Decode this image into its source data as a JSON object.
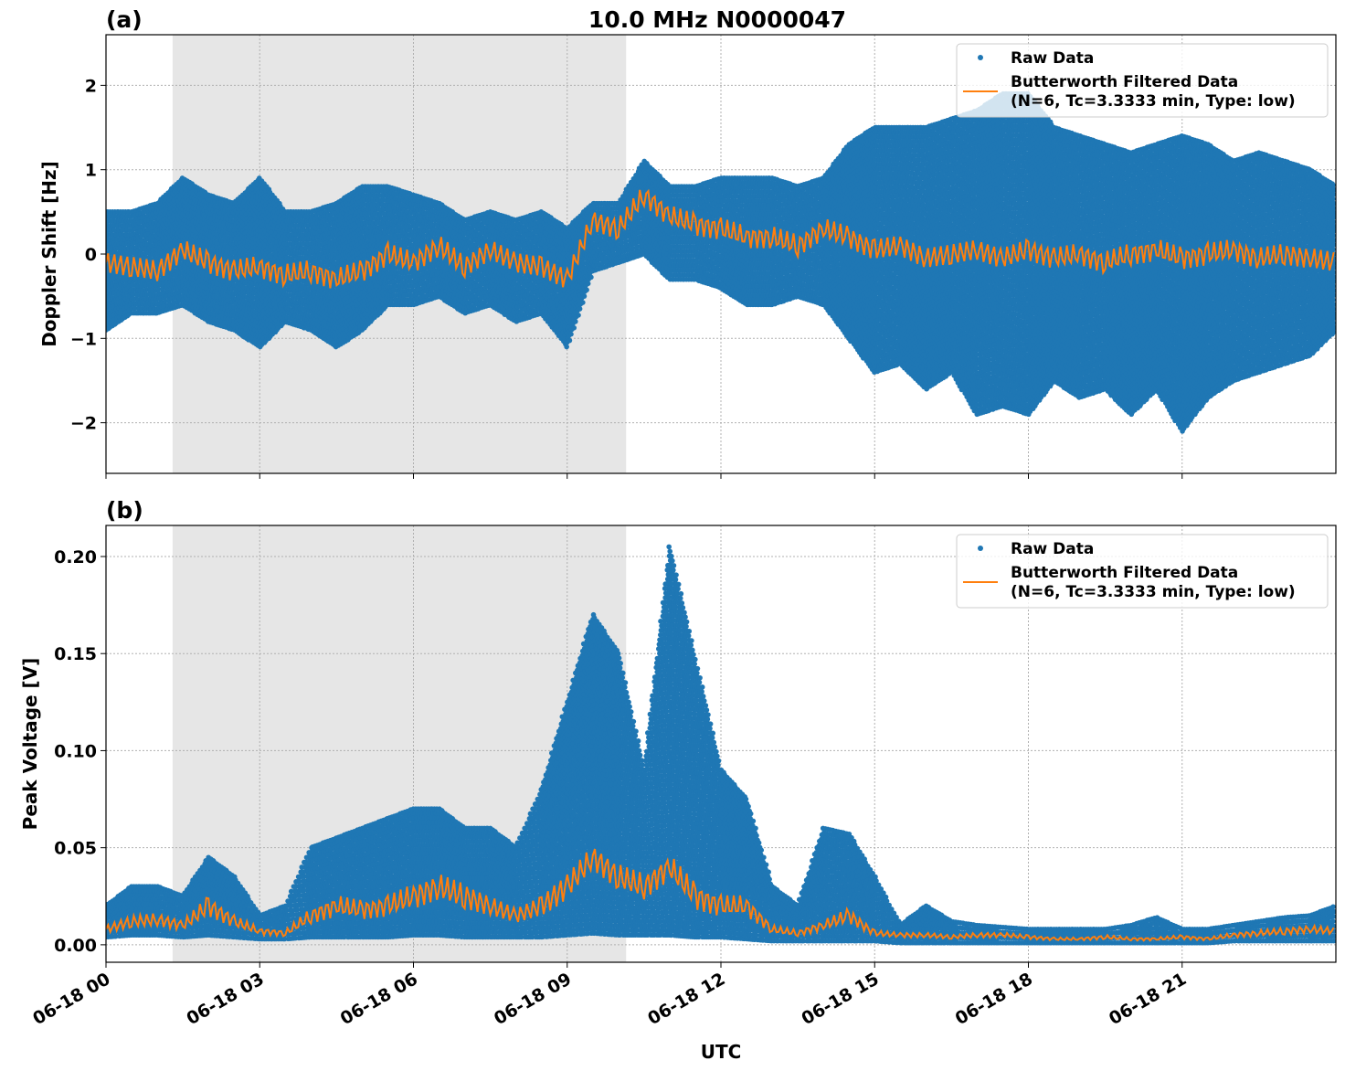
{
  "chart_data": [
    {
      "type": "scatter",
      "panel_label": "(a)",
      "title": "10.0 MHz N0000047",
      "xlabel": "",
      "ylabel": "Doppler Shift [Hz]",
      "xlim_hours_utc": [
        0,
        24
      ],
      "ylim": [
        -2.6,
        2.6
      ],
      "grid": true,
      "legend_placement": "top-right",
      "shaded_region_hours_utc": [
        1.3,
        10.15
      ],
      "x_hours_utc": [
        0,
        0.5,
        1,
        1.5,
        2,
        2.5,
        3,
        3.5,
        4,
        4.5,
        5,
        5.5,
        6,
        6.5,
        7,
        7.5,
        8,
        8.5,
        9,
        9.5,
        10,
        10.5,
        11,
        11.5,
        12,
        12.5,
        13,
        13.5,
        14,
        14.5,
        15,
        15.5,
        16,
        16.5,
        17,
        17.5,
        18,
        18.5,
        19,
        19.5,
        20,
        20.5,
        21,
        21.5,
        22,
        22.5,
        23,
        23.5,
        24
      ],
      "yticks": [
        "−2",
        "−1",
        "0",
        "1",
        "2"
      ],
      "ytick_values": [
        -2,
        -1,
        0,
        1,
        2
      ],
      "series": [
        {
          "name": "Raw Data",
          "color": "#1f77b4",
          "kind": "points-range",
          "low": [
            -0.9,
            -0.7,
            -0.7,
            -0.6,
            -0.8,
            -0.9,
            -1.1,
            -0.8,
            -0.9,
            -1.1,
            -0.9,
            -0.6,
            -0.6,
            -0.5,
            -0.7,
            -0.6,
            -0.8,
            -0.7,
            -1.1,
            -0.2,
            -0.1,
            0.0,
            -0.3,
            -0.3,
            -0.4,
            -0.6,
            -0.6,
            -0.5,
            -0.6,
            -1.0,
            -1.4,
            -1.3,
            -1.6,
            -1.4,
            -1.9,
            -1.8,
            -1.9,
            -1.5,
            -1.7,
            -1.6,
            -1.9,
            -1.6,
            -2.1,
            -1.7,
            -1.5,
            -1.4,
            -1.3,
            -1.2,
            -0.9
          ],
          "high": [
            0.5,
            0.5,
            0.6,
            0.9,
            0.7,
            0.6,
            0.9,
            0.5,
            0.5,
            0.6,
            0.8,
            0.8,
            0.7,
            0.6,
            0.4,
            0.5,
            0.4,
            0.5,
            0.3,
            0.6,
            0.6,
            1.1,
            0.8,
            0.8,
            0.9,
            0.9,
            0.9,
            0.8,
            0.9,
            1.3,
            1.5,
            1.5,
            1.5,
            1.6,
            1.7,
            1.9,
            1.9,
            1.5,
            1.4,
            1.3,
            1.2,
            1.3,
            1.4,
            1.3,
            1.1,
            1.2,
            1.1,
            1.0,
            0.8
          ]
        },
        {
          "name": "Butterworth Filtered Data",
          "name_line2": "(N=6, Tc=3.3333 min, Type: low)",
          "color": "#ff7f0e",
          "kind": "line",
          "values": [
            -0.1,
            -0.15,
            -0.2,
            0.05,
            -0.1,
            -0.2,
            -0.15,
            -0.25,
            -0.2,
            -0.3,
            -0.2,
            0.0,
            -0.1,
            0.1,
            -0.15,
            0.05,
            -0.1,
            -0.15,
            -0.3,
            0.4,
            0.3,
            0.7,
            0.45,
            0.35,
            0.3,
            0.2,
            0.2,
            0.1,
            0.3,
            0.2,
            0.05,
            0.1,
            -0.05,
            0.0,
            0.05,
            -0.05,
            0.05,
            -0.05,
            0.0,
            -0.1,
            0.0,
            0.05,
            -0.05,
            0.0,
            0.05,
            -0.05,
            0.0,
            -0.05,
            -0.1
          ]
        }
      ]
    },
    {
      "type": "scatter",
      "panel_label": "(b)",
      "title": "",
      "xlabel": "UTC",
      "ylabel": "Peak Voltage [V]",
      "xlim_hours_utc": [
        0,
        24
      ],
      "ylim": [
        -0.009,
        0.216
      ],
      "grid": true,
      "legend_placement": "top-right",
      "shaded_region_hours_utc": [
        1.3,
        10.15
      ],
      "x_hours_utc": [
        0,
        0.5,
        1,
        1.5,
        2,
        2.5,
        3,
        3.5,
        4,
        4.5,
        5,
        5.5,
        6,
        6.5,
        7,
        7.5,
        8,
        8.5,
        9,
        9.5,
        10,
        10.5,
        11,
        11.5,
        12,
        12.5,
        13,
        13.5,
        14,
        14.5,
        15,
        15.5,
        16,
        16.5,
        17,
        17.5,
        18,
        18.5,
        19,
        19.5,
        20,
        20.5,
        21,
        21.5,
        22,
        22.5,
        23,
        23.5,
        24
      ],
      "yticks": [
        "0.00",
        "0.05",
        "0.10",
        "0.15",
        "0.20"
      ],
      "ytick_values": [
        0,
        0.05,
        0.1,
        0.15,
        0.2
      ],
      "xticks": [
        "06-18 00",
        "06-18 03",
        "06-18 06",
        "06-18 09",
        "06-18 12",
        "06-18 15",
        "06-18 18",
        "06-18 21"
      ],
      "xtick_values": [
        0,
        3,
        6,
        9,
        12,
        15,
        18,
        21
      ],
      "series": [
        {
          "name": "Raw Data",
          "color": "#1f77b4",
          "kind": "points-range",
          "low": [
            0.004,
            0.005,
            0.005,
            0.004,
            0.005,
            0.004,
            0.003,
            0.003,
            0.004,
            0.004,
            0.004,
            0.004,
            0.005,
            0.005,
            0.004,
            0.004,
            0.004,
            0.004,
            0.005,
            0.006,
            0.005,
            0.005,
            0.005,
            0.004,
            0.004,
            0.003,
            0.002,
            0.002,
            0.002,
            0.002,
            0.002,
            0.001,
            0.001,
            0.001,
            0.001,
            0.001,
            0.001,
            0.001,
            0.001,
            0.001,
            0.001,
            0.001,
            0.001,
            0.001,
            0.002,
            0.002,
            0.002,
            0.002,
            0.002
          ],
          "high": [
            0.02,
            0.03,
            0.03,
            0.025,
            0.045,
            0.035,
            0.015,
            0.02,
            0.05,
            0.055,
            0.06,
            0.065,
            0.07,
            0.07,
            0.06,
            0.06,
            0.05,
            0.08,
            0.125,
            0.17,
            0.15,
            0.09,
            0.205,
            0.147,
            0.09,
            0.075,
            0.03,
            0.02,
            0.06,
            0.057,
            0.035,
            0.01,
            0.02,
            0.012,
            0.01,
            0.009,
            0.008,
            0.008,
            0.008,
            0.008,
            0.01,
            0.014,
            0.008,
            0.008,
            0.01,
            0.012,
            0.014,
            0.015,
            0.02
          ]
        },
        {
          "name": "Butterworth Filtered Data",
          "name_line2": "(N=6, Tc=3.3333 min, Type: low)",
          "color": "#ff7f0e",
          "kind": "line",
          "values": [
            0.008,
            0.012,
            0.013,
            0.01,
            0.02,
            0.012,
            0.007,
            0.006,
            0.015,
            0.02,
            0.018,
            0.02,
            0.025,
            0.03,
            0.025,
            0.02,
            0.015,
            0.02,
            0.03,
            0.045,
            0.035,
            0.03,
            0.04,
            0.025,
            0.02,
            0.02,
            0.008,
            0.006,
            0.01,
            0.015,
            0.006,
            0.005,
            0.005,
            0.004,
            0.005,
            0.005,
            0.004,
            0.003,
            0.003,
            0.004,
            0.003,
            0.003,
            0.004,
            0.003,
            0.005,
            0.006,
            0.007,
            0.008,
            0.007
          ]
        }
      ]
    }
  ]
}
